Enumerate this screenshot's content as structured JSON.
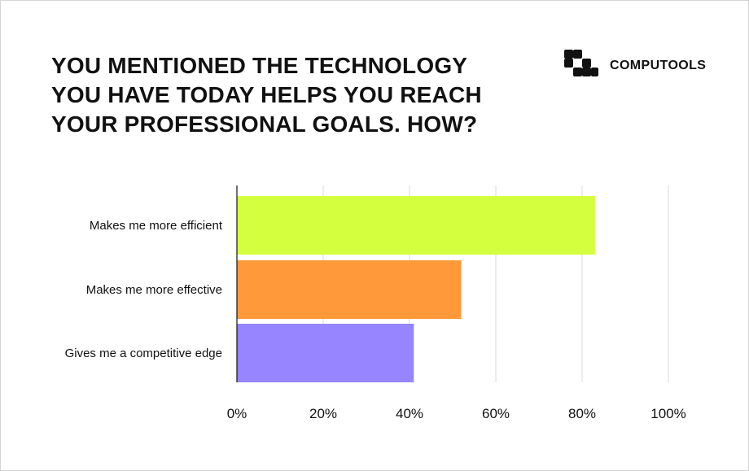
{
  "header": {
    "title_lines": [
      "YOU MENTIONED THE TECHNOLOGY",
      "YOU HAVE TODAY HELPS YOU REACH",
      "YOUR PROFESSIONAL GOALS. HOW?"
    ],
    "brand": "COMPUTOOLS",
    "brand_icon": "computools-logo-icon"
  },
  "chart_data": {
    "type": "bar",
    "orientation": "horizontal",
    "title": "YOU MENTIONED THE TECHNOLOGY YOU HAVE TODAY HELPS YOU REACH YOUR PROFESSIONAL GOALS. HOW?",
    "categories": [
      "Makes me more efficient",
      "Makes me more effective",
      "Gives me a competitive edge"
    ],
    "values": [
      83,
      52,
      41
    ],
    "colors": [
      "#d4ff3e",
      "#ff993a",
      "#9685ff"
    ],
    "xlim": [
      0,
      100
    ],
    "ticks": [
      0,
      20,
      40,
      60,
      80,
      100
    ],
    "tick_labels": [
      "0%",
      "20%",
      "40%",
      "60%",
      "80%",
      "100%"
    ],
    "xlabel": "",
    "ylabel": "",
    "grid": "vertical",
    "legend": "none"
  }
}
